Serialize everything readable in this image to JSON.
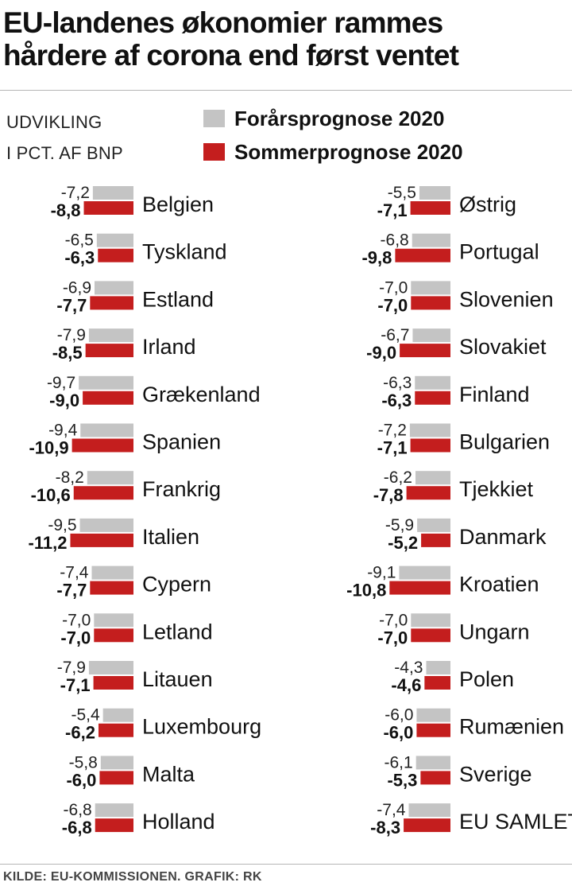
{
  "title_lines": [
    "EU-landenes økonomier rammes",
    "hårdere af corona end først ventet"
  ],
  "unit_lines": [
    "UDVIKLING",
    "I PCT. AF BNP"
  ],
  "source": "KILDE: EU-KOMMISSIONEN. GRAFIK: RK",
  "colors": {
    "spring": "#c4c4c4",
    "summer": "#c41e1e"
  },
  "chart_data": {
    "type": "bar",
    "orientation": "horizontal",
    "unit": "pct. af BNP",
    "series": [
      {
        "name": "Forårsprognose 2020",
        "color": "#c4c4c4"
      },
      {
        "name": "Sommerprognose 2020",
        "color": "#c41e1e"
      }
    ],
    "columns": [
      [
        {
          "country": "Belgien",
          "spring": "-7,2",
          "summer": "-8,8"
        },
        {
          "country": "Tyskland",
          "spring": "-6,5",
          "summer": "-6,3"
        },
        {
          "country": "Estland",
          "spring": "-6,9",
          "summer": "-7,7"
        },
        {
          "country": "Irland",
          "spring": "-7,9",
          "summer": "-8,5"
        },
        {
          "country": "Grækenland",
          "spring": "-9,7",
          "summer": "-9,0"
        },
        {
          "country": "Spanien",
          "spring": "-9,4",
          "summer": "-10,9"
        },
        {
          "country": "Frankrig",
          "spring": "-8,2",
          "summer": "-10,6"
        },
        {
          "country": "Italien",
          "spring": "-9,5",
          "summer": "-11,2"
        },
        {
          "country": "Cypern",
          "spring": "-7,4",
          "summer": "-7,7"
        },
        {
          "country": "Letland",
          "spring": "-7,0",
          "summer": "-7,0"
        },
        {
          "country": "Litauen",
          "spring": "-7,9",
          "summer": "-7,1"
        },
        {
          "country": "Luxembourg",
          "spring": "-5,4",
          "summer": "-6,2"
        },
        {
          "country": "Malta",
          "spring": "-5,8",
          "summer": "-6,0"
        },
        {
          "country": "Holland",
          "spring": "-6,8",
          "summer": "-6,8"
        }
      ],
      [
        {
          "country": "Østrig",
          "spring": "-5,5",
          "summer": "-7,1"
        },
        {
          "country": "Portugal",
          "spring": "-6,8",
          "summer": "-9,8"
        },
        {
          "country": "Slovenien",
          "spring": "-7,0",
          "summer": "-7,0"
        },
        {
          "country": "Slovakiet",
          "spring": "-6,7",
          "summer": "-9,0"
        },
        {
          "country": "Finland",
          "spring": "-6,3",
          "summer": "-6,3"
        },
        {
          "country": "Bulgarien",
          "spring": "-7,2",
          "summer": "-7,1"
        },
        {
          "country": "Tjekkiet",
          "spring": "-6,2",
          "summer": "-7,8"
        },
        {
          "country": "Danmark",
          "spring": "-5,9",
          "summer": "-5,2"
        },
        {
          "country": "Kroatien",
          "spring": "-9,1",
          "summer": "-10,8"
        },
        {
          "country": "Ungarn",
          "spring": "-7,0",
          "summer": "-7,0"
        },
        {
          "country": "Polen",
          "spring": "-4,3",
          "summer": "-4,6"
        },
        {
          "country": "Rumænien",
          "spring": "-6,0",
          "summer": "-6,0"
        },
        {
          "country": "Sverige",
          "spring": "-6,1",
          "summer": "-5,3"
        },
        {
          "country": "EU SAMLET",
          "spring": "-7,4",
          "summer": "-8,3"
        }
      ]
    ]
  }
}
